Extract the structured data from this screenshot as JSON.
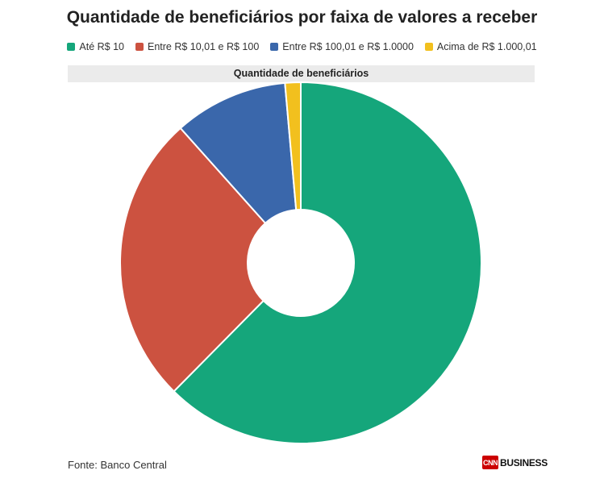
{
  "header": {
    "title": "Quantidade de beneficiários por faixa de valores a receber"
  },
  "chart_data": {
    "type": "pie",
    "subtitle": "Quantidade de beneficiários",
    "categories": [
      "Até R$ 10",
      "Entre R$ 10,01 e R$ 100",
      "Entre R$ 100,01 e R$ 1.0000",
      "Acima de R$ 1.000,01"
    ],
    "values": [
      62.4,
      26.0,
      10.2,
      1.4
    ],
    "colors": [
      "#15a67b",
      "#cc5240",
      "#3a67ab",
      "#f2c01e"
    ],
    "donut": true
  },
  "footer": {
    "source": "Fonte: Banco Central",
    "logo_brand": "CNN",
    "logo_text": "BUSINESS"
  }
}
